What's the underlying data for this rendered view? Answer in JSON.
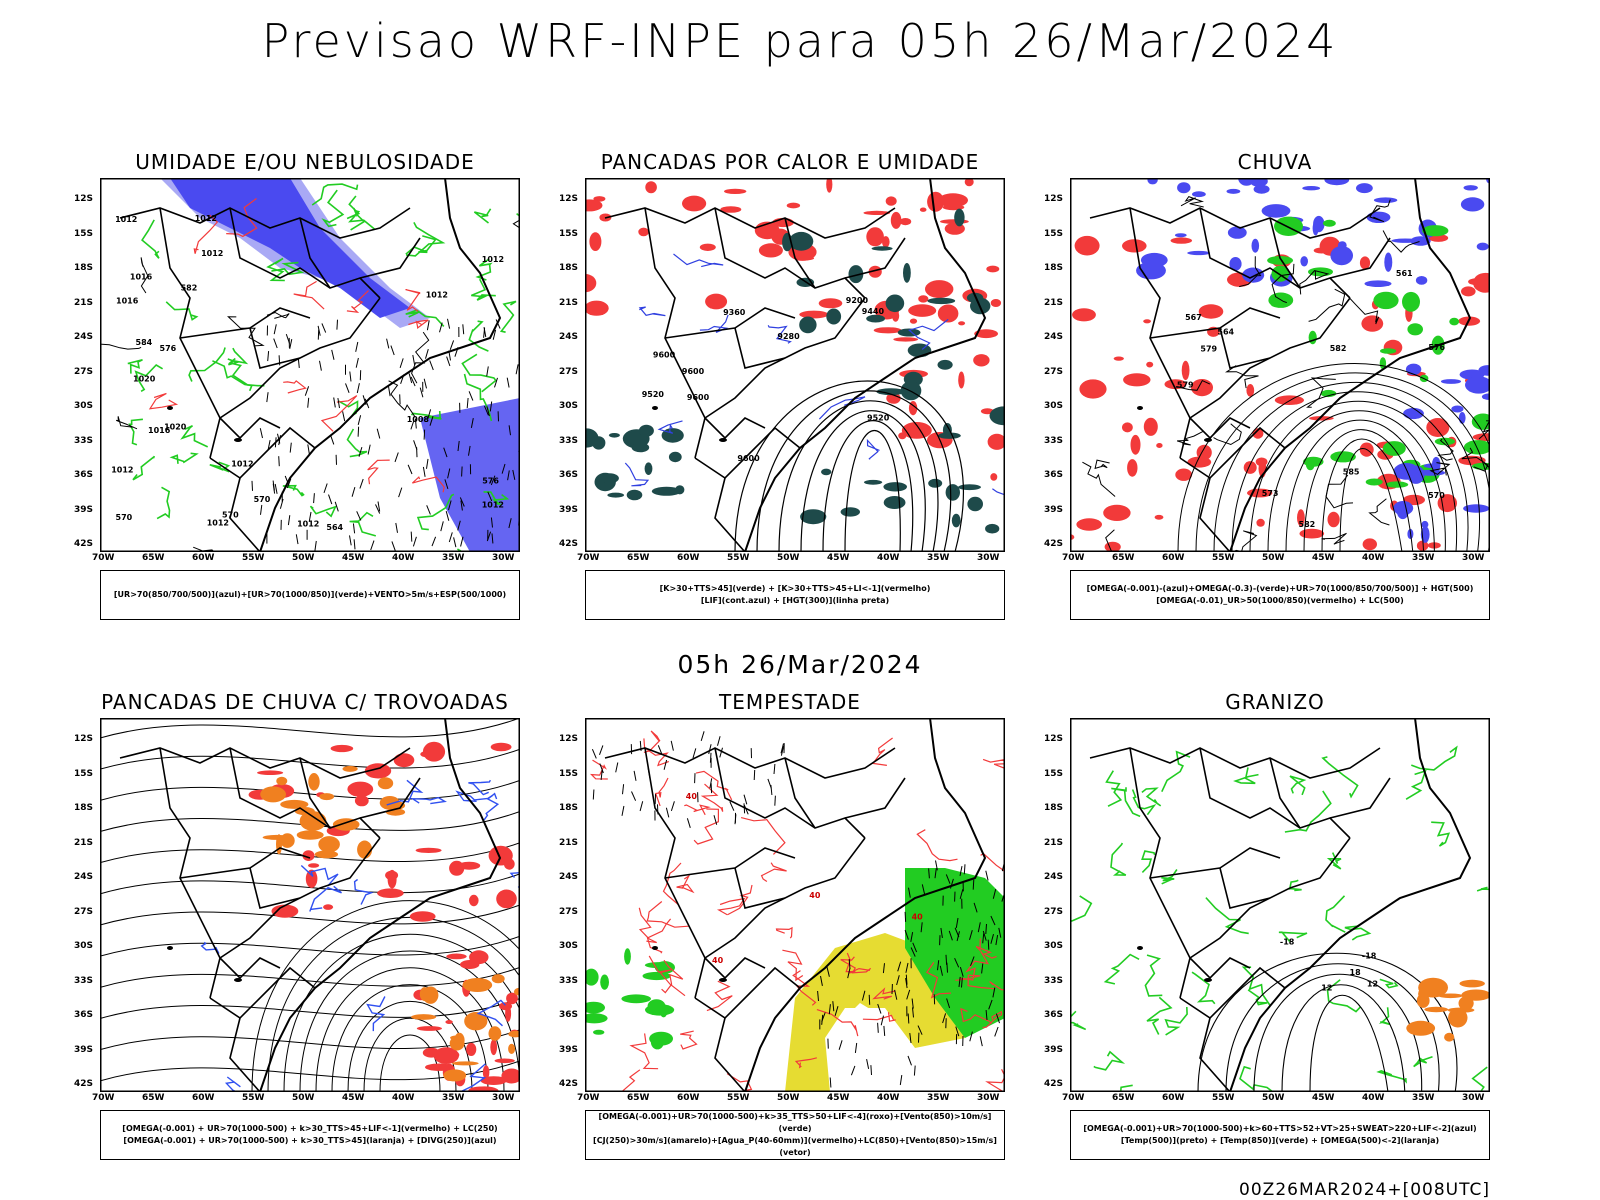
{
  "header": {
    "title": "Previsao WRF-INPE  para 05h 26/Mar/2024",
    "mid_time": "05h 26/Mar/2024",
    "stamp": "00Z26MAR2024+[008UTC]"
  },
  "axes": {
    "lat_labels": [
      "12S",
      "15S",
      "18S",
      "21S",
      "24S",
      "27S",
      "30S",
      "33S",
      "36S",
      "39S",
      "42S"
    ],
    "lon_labels": [
      "70W",
      "65W",
      "60W",
      "55W",
      "50W",
      "45W",
      "40W",
      "35W",
      "30W"
    ]
  },
  "panels": [
    {
      "title": "UMIDADE E/OU NEBULOSIDADE",
      "legend": [
        "[UR>70(850/700/500)](azul)+[UR>70(1000/850)](verde)+VENTO>5m/s+ESP(500/1000)"
      ],
      "contour_labels": [
        "1012",
        "1012",
        "1012",
        "1012",
        "1016",
        "1012",
        "1012",
        "1016",
        "1012",
        "1012",
        "1020",
        "1020",
        "1008",
        "1012",
        "1016",
        "1012",
        "576",
        "570",
        "570",
        "564",
        "582",
        "576",
        "570",
        "584"
      ]
    },
    {
      "title": "PANCADAS POR CALOR E UMIDADE",
      "legend": [
        "[K>30+TTS>45](verde) + [K>30+TTS>45+LI<-1](vermelho)",
        "[LIF](cont.azul) + [HGT(300)](linha preta)"
      ],
      "contour_labels": [
        "9600",
        "9600",
        "9600",
        "9600",
        "9440",
        "9360",
        "9280",
        "9200",
        "9520",
        "9520"
      ]
    },
    {
      "title": "CHUVA",
      "legend": [
        "[OMEGA(-0.001)-(azul)+OMEGA(-0.3)-(verde)+UR>70(1000/850/700/500)] + HGT(500)",
        "[OMEGA(-0.01)_UR>50(1000/850)(vermelho) + LC(500)"
      ],
      "contour_labels": [
        "585",
        "579",
        "576",
        "573",
        "570",
        "567",
        "564",
        "561",
        "582",
        "582",
        "579"
      ]
    },
    {
      "title": "PANCADAS DE CHUVA C/ TROVOADAS",
      "legend": [
        "[OMEGA(-0.001) + UR>70(1000-500) + k>30_TTS>45+LIF<-1](vermelho) + LC(250)",
        "[OMEGA(-0.001) + UR>70(1000-500) + k>30_TTS>45](laranja) + [DIVG(250)](azul)"
      ],
      "contour_labels": []
    },
    {
      "title": "TEMPESTADE",
      "legend": [
        "[OMEGA(-0.001)+UR>70(1000-500)+k>35_TTS>50+LIF<-4](roxo)+[Vento(850)>10m/s](verde)",
        "[CJ(250)>30m/s](amarelo)+[Agua_P(40-60mm)](vermelho)+LC(850)+[Vento(850)>15m/s](vetor)"
      ],
      "contour_labels": [
        "40",
        "40",
        "40",
        "40"
      ]
    },
    {
      "title": "GRANIZO",
      "legend": [
        "[OMEGA(-0.001)+UR>70(1000-500)+k>60+TTS>52+VT>25+SWEAT>220+LIF<-2](azul)",
        "[Temp(500)](preto) + [Temp(850)](verde) + [OMEGA(500)<-2](laranja)"
      ],
      "contour_labels": [
        "12",
        "18",
        "-18",
        "-18",
        "12"
      ]
    }
  ],
  "colors": {
    "blue": "#4a4af0",
    "lightblue": "#a9a9f5",
    "green": "#22cc22",
    "red": "#f23a3a",
    "darkteal": "#1e4a4a",
    "orange": "#f08020",
    "yellow": "#e6dc32",
    "black": "#000000"
  }
}
